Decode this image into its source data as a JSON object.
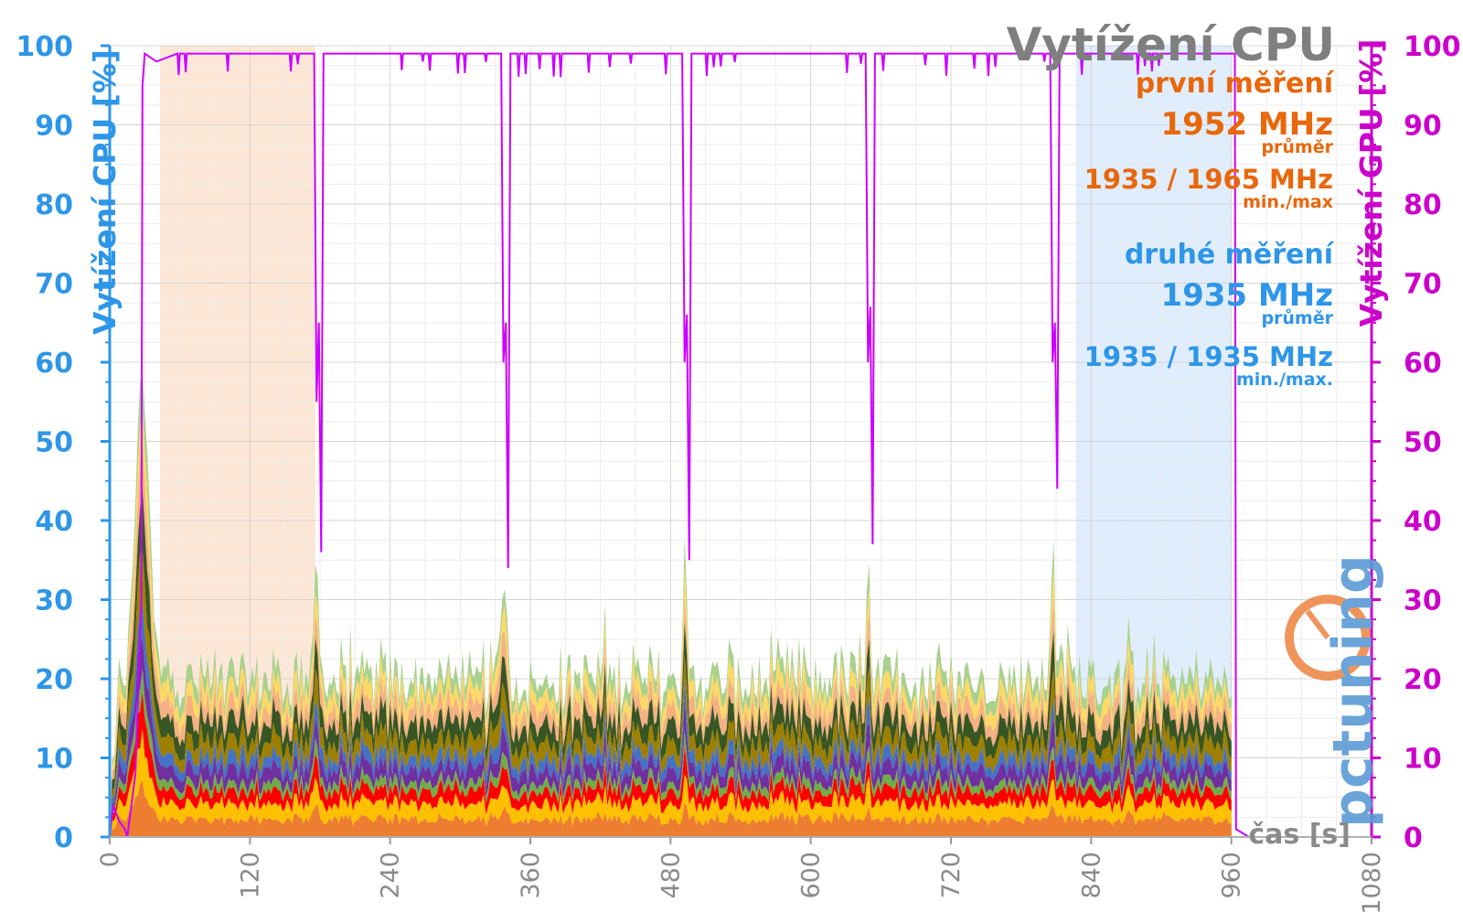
{
  "chart_data": {
    "type": "area",
    "title": "Vytížení CPU",
    "xlabel": "čas [s]",
    "ylabel_left": "Vytížení CPU [%]",
    "ylabel_right": "Vytížení GPU [%]",
    "xlim": [
      0,
      1080
    ],
    "ylim": [
      0,
      100
    ],
    "x_ticks": [
      0,
      120,
      240,
      360,
      480,
      600,
      720,
      840,
      960,
      1080
    ],
    "y_ticks": [
      0,
      10,
      20,
      30,
      40,
      50,
      60,
      70,
      80,
      90,
      100
    ],
    "grid": true,
    "colors": {
      "left_axis": "#2e96e8",
      "right_axis": "#cc00cc",
      "title": "#7f7f7f",
      "first_measurement": "#e8670c",
      "second_measurement": "#2e96e8",
      "highlight_first": "#fbe3cf",
      "highlight_second": "#d9eafb",
      "gpu_line": "#cc00ff"
    },
    "highlight_regions": [
      {
        "x": [
          43,
          176
        ],
        "measurement": "first"
      },
      {
        "x": [
          827,
          960
        ],
        "measurement": "second"
      }
    ],
    "annotations": {
      "first": {
        "heading": "první měření",
        "avg_value": "1952 MHz",
        "avg_label": "průměr",
        "minmax_value": "1935 / 1965 MHz",
        "minmax_label": "min./max"
      },
      "second": {
        "heading": "druhé měření",
        "avg_value": "1935 MHz",
        "avg_label": "průměr",
        "minmax_value": "1935 / 1935 MHz",
        "minmax_label": "min./max."
      }
    },
    "gpu_series": {
      "color": "#cc00ff",
      "axis": "right",
      "points": [
        [
          0,
          0
        ],
        [
          3,
          4
        ],
        [
          8,
          2
        ],
        [
          13,
          1
        ],
        [
          15,
          0
        ],
        [
          22,
          8
        ],
        [
          27,
          30
        ],
        [
          28,
          95
        ],
        [
          30,
          99
        ],
        [
          40,
          98
        ],
        [
          175,
          99
        ],
        [
          177,
          55
        ],
        [
          179,
          65
        ],
        [
          181,
          36
        ],
        [
          183,
          99
        ],
        [
          335,
          99
        ],
        [
          337,
          60
        ],
        [
          339,
          65
        ],
        [
          341,
          34
        ],
        [
          343,
          99
        ],
        [
          490,
          99
        ],
        [
          492,
          60
        ],
        [
          494,
          66
        ],
        [
          496,
          35
        ],
        [
          498,
          99
        ],
        [
          647,
          99
        ],
        [
          649,
          60
        ],
        [
          651,
          67
        ],
        [
          653,
          37
        ],
        [
          655,
          99
        ],
        [
          805,
          99
        ],
        [
          807,
          60
        ],
        [
          809,
          65
        ],
        [
          811,
          44
        ],
        [
          813,
          99
        ],
        [
          963,
          99
        ],
        [
          964,
          1
        ],
        [
          975,
          0
        ]
      ]
    },
    "cpu_series_colors": [
      "#ed7d31",
      "#ffc000",
      "#ff0000",
      "#70ad47",
      "#7030a0",
      "#4472c4",
      "#9e7f00",
      "#375623",
      "#f4b183",
      "#ffd966",
      "#a9d18e"
    ],
    "cpu_stack_profile": {
      "approx_total_percent": 20,
      "startup_peak": {
        "x": 28,
        "value": 58
      },
      "burst_peaks": [
        {
          "x": 177,
          "value": 35
        },
        {
          "x": 337,
          "value": 34
        },
        {
          "x": 492,
          "value": 33
        },
        {
          "x": 649,
          "value": 36
        },
        {
          "x": 807,
          "value": 37
        }
      ],
      "end_x": 960
    },
    "watermark": "pctuning"
  }
}
